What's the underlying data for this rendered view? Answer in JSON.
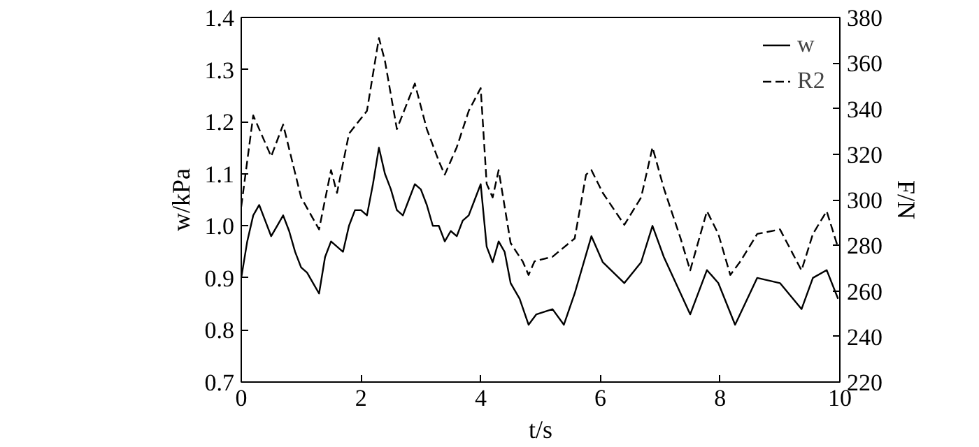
{
  "chart_data": {
    "type": "line",
    "xlabel": "t/s",
    "ylabel": "w/kPa",
    "y2label": "F/N",
    "xlim": [
      0,
      10
    ],
    "xticks": [
      0,
      2,
      4,
      6,
      8,
      10
    ],
    "ylim": [
      0.7,
      1.4
    ],
    "yticks": [
      0.7,
      0.8,
      0.9,
      {
        "value": 1.0,
        "label": "1.0"
      },
      1.1,
      1.2,
      1.3,
      1.4
    ],
    "y2lim": [
      220,
      380
    ],
    "y2ticks": [
      220,
      240,
      260,
      280,
      300,
      320,
      340,
      360,
      380
    ],
    "legend": "top right",
    "grid": false,
    "series": [
      {
        "name": "w",
        "color": "#000000",
        "line_style": "solid",
        "x": [
          0,
          0.1,
          0.2,
          0.3,
          0.4,
          0.5,
          0.6,
          0.7,
          0.8,
          0.9,
          1.0,
          1.1,
          1.2,
          1.3,
          1.4,
          1.5,
          1.6,
          1.7,
          1.8,
          1.9,
          2.0,
          2.1,
          2.2,
          2.3,
          2.4,
          2.5,
          2.6,
          2.7,
          2.8,
          2.9,
          3.0,
          3.1,
          3.2,
          3.3,
          3.4,
          3.5,
          3.6,
          3.7,
          3.8,
          3.9,
          4.0,
          4.1,
          4.2,
          4.3,
          4.4,
          4.5,
          4.65,
          4.8,
          4.93,
          5.2,
          5.39,
          5.57,
          5.85,
          6.04,
          6.4,
          6.68,
          6.87,
          7.06,
          7.3,
          7.5,
          7.78,
          7.97,
          8.25,
          8.62,
          9.0,
          9.36,
          9.55,
          9.78,
          9.97
        ],
        "values": [
          0.9,
          0.97,
          1.02,
          1.04,
          1.01,
          0.98,
          1.0,
          1.02,
          0.99,
          0.95,
          0.92,
          0.91,
          0.89,
          0.87,
          0.94,
          0.97,
          0.96,
          0.95,
          1.0,
          1.03,
          1.03,
          1.02,
          1.08,
          1.15,
          1.1,
          1.07,
          1.03,
          1.02,
          1.05,
          1.08,
          1.07,
          1.04,
          1.0,
          1.0,
          0.97,
          0.99,
          0.98,
          1.01,
          1.02,
          1.05,
          1.08,
          0.96,
          0.93,
          0.97,
          0.95,
          0.89,
          0.86,
          0.81,
          0.83,
          0.84,
          0.81,
          0.87,
          0.98,
          0.93,
          0.89,
          0.93,
          1.0,
          0.94,
          0.88,
          0.83,
          0.915,
          0.89,
          0.81,
          0.9,
          0.89,
          0.84,
          0.9,
          0.915,
          0.86
        ]
      },
      {
        "name": "R2",
        "color": "#000000",
        "line_style": "dashed",
        "axis": "y2",
        "x": [
          0,
          0.2,
          0.5,
          0.7,
          1.0,
          1.3,
          1.5,
          1.6,
          1.8,
          2.1,
          2.3,
          2.4,
          2.6,
          2.9,
          3.1,
          3.3,
          3.4,
          3.6,
          3.8,
          4.0,
          4.1,
          4.2,
          4.3,
          4.5,
          4.7,
          4.8,
          4.9,
          5.2,
          5.57,
          5.76,
          5.85,
          6.04,
          6.4,
          6.68,
          6.87,
          7.06,
          7.34,
          7.5,
          7.78,
          7.97,
          8.17,
          8.34,
          8.62,
          9.0,
          9.36,
          9.55,
          9.78,
          9.97
        ],
        "values": [
          297,
          337,
          319,
          333,
          301,
          287,
          313,
          303,
          329,
          339,
          371,
          361,
          331,
          351,
          331,
          317,
          311,
          323,
          339,
          349,
          307,
          301,
          313,
          281,
          273,
          267,
          273,
          275,
          283,
          311,
          313,
          303,
          289,
          301,
          323,
          305,
          283,
          269,
          295,
          285,
          267,
          273,
          285,
          287,
          269,
          285,
          295,
          279
        ]
      }
    ]
  }
}
